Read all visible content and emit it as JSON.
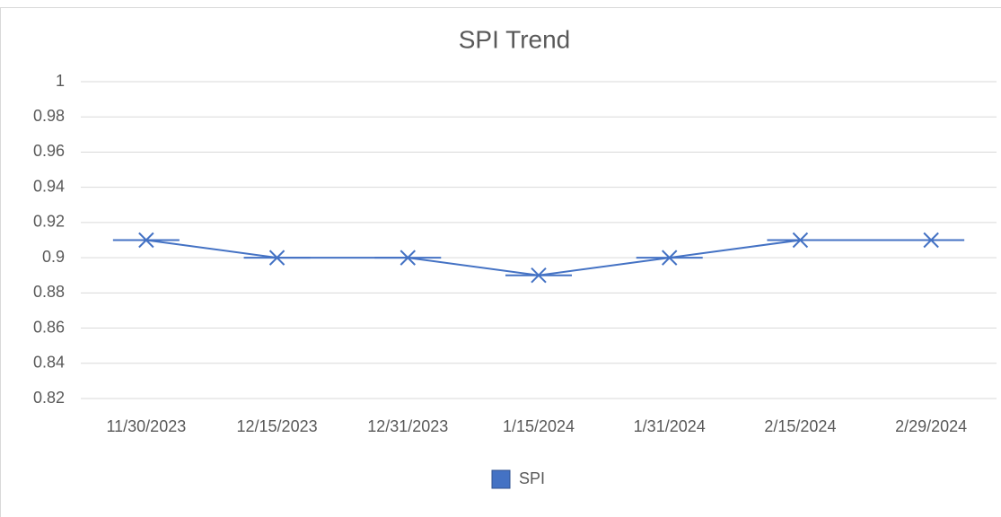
{
  "chart_data": {
    "type": "line",
    "title": "SPI Trend",
    "categories": [
      "11/30/2023",
      "12/15/2023",
      "12/31/2023",
      "1/15/2024",
      "1/31/2024",
      "2/15/2024",
      "2/29/2024"
    ],
    "series": [
      {
        "name": "SPI",
        "color": "#4472c4",
        "values": [
          0.91,
          0.9,
          0.9,
          0.89,
          0.9,
          0.91,
          0.91
        ]
      }
    ],
    "ylim": [
      0.82,
      1
    ],
    "yticks": [
      0.82,
      0.84,
      0.86,
      0.88,
      0.9,
      0.92,
      0.94,
      0.96,
      0.98,
      1
    ],
    "grid": true,
    "legend": "bottom"
  }
}
